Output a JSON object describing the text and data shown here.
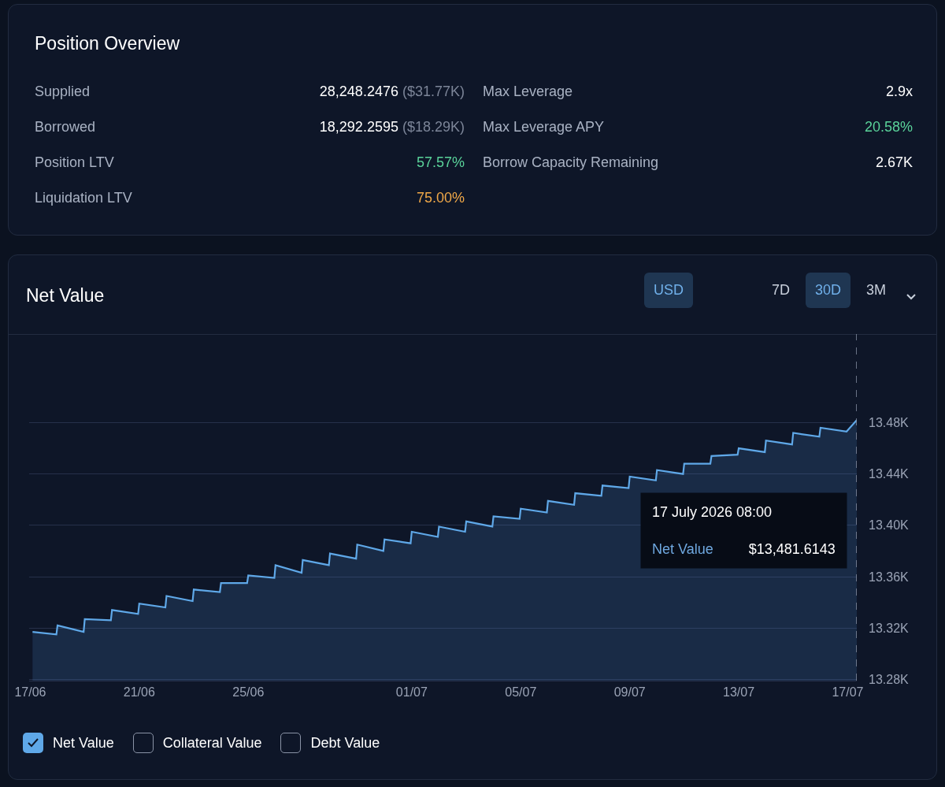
{
  "chart_data": [
    {
      "type": "other",
      "title": "Position Overview",
      "annotations": [
        "Supplied",
        "28,248.2476 ($31.77K)",
        "Borrowed",
        "18,292.2595 ($18.29K)",
        "Position LTV",
        "57.57%",
        "Liquidation LTV",
        "75.00%",
        "Max Leverage",
        "2.9x",
        "Max Leverage APY",
        "20.58%",
        "Borrow Capacity Remaining",
        "2.67K"
      ]
    },
    {
      "type": "area",
      "title": "Net Value",
      "x": [
        "2026-06-17T02:00",
        "2026-06-17T23:00",
        "2026-06-18T00:00",
        "2026-06-18T23:00",
        "2026-06-19T00:00",
        "2026-06-19T23:00",
        "2026-06-20T00:00",
        "2026-06-20T23:00",
        "2026-06-21T00:00",
        "2026-06-21T23:00",
        "2026-06-22T00:00",
        "2026-06-22T23:00",
        "2026-06-23T00:00",
        "2026-06-23T23:00",
        "2026-06-24T00:00",
        "2026-06-24T23:00",
        "2026-06-25T00:00",
        "2026-06-25T23:00",
        "2026-06-26T00:00",
        "2026-06-26T23:00",
        "2026-06-27T00:00",
        "2026-06-27T23:00",
        "2026-06-28T00:00",
        "2026-06-28T23:00",
        "2026-06-29T00:00",
        "2026-06-29T23:00",
        "2026-06-30T00:00",
        "2026-06-30T23:00",
        "2026-07-01T00:00",
        "2026-07-01T23:00",
        "2026-07-02T00:00",
        "2026-07-02T23:00",
        "2026-07-03T00:00",
        "2026-07-03T23:00",
        "2026-07-04T00:00",
        "2026-07-04T23:00",
        "2026-07-05T00:00",
        "2026-07-05T23:00",
        "2026-07-06T00:00",
        "2026-07-06T23:00",
        "2026-07-07T00:00",
        "2026-07-07T23:00",
        "2026-07-08T00:00",
        "2026-07-08T23:00",
        "2026-07-09T00:00",
        "2026-07-09T23:00",
        "2026-07-10T00:00",
        "2026-07-10T23:00",
        "2026-07-11T00:00",
        "2026-07-11T23:00",
        "2026-07-12T00:00",
        "2026-07-12T23:00",
        "2026-07-13T00:00",
        "2026-07-13T23:00",
        "2026-07-14T00:00",
        "2026-07-14T23:00",
        "2026-07-15T00:00",
        "2026-07-15T23:00",
        "2026-07-16T00:00",
        "2026-07-16T23:00",
        "2026-07-17T08:00"
      ],
      "series": [
        {
          "name": "Net Value",
          "color": "#5fa8e8",
          "values": [
            13317,
            13315,
            13322,
            13317,
            13327,
            13326,
            13334,
            13331,
            13339,
            13336,
            13345,
            13341,
            13350,
            13348,
            13355,
            13355,
            13361,
            13359,
            13369,
            13363,
            13373,
            13369,
            13378,
            13374,
            13385,
            13380,
            13389,
            13386,
            13395,
            13391,
            13399,
            13395,
            13403,
            13399,
            13407,
            13405,
            13413,
            13410,
            13419,
            13416,
            13425,
            13423,
            13431,
            13429,
            13438,
            13435,
            13443,
            13440,
            13448,
            13448,
            13454,
            13455,
            13460,
            13457,
            13466,
            13463,
            13472,
            13469,
            13476,
            13473,
            13482
          ]
        }
      ],
      "xlim": [
        "2026-06-16T23:00",
        "2026-07-17T08:00"
      ],
      "xticks": [
        {
          "value": "2026-06-17",
          "label": "17/06"
        },
        {
          "value": "2026-06-21",
          "label": "21/06"
        },
        {
          "value": "2026-06-25",
          "label": "25/06"
        },
        {
          "value": "2026-07-01",
          "label": "01/07"
        },
        {
          "value": "2026-07-05",
          "label": "05/07"
        },
        {
          "value": "2026-07-09",
          "label": "09/07"
        },
        {
          "value": "2026-07-13",
          "label": "13/07"
        },
        {
          "value": "2026-07-17",
          "label": "17/07"
        }
      ],
      "ylim": [
        13279,
        13549
      ],
      "yticks": [
        {
          "value": 13280,
          "label": "13.28K"
        },
        {
          "value": 13320,
          "label": "13.32K"
        },
        {
          "value": 13360,
          "label": "13.36K"
        },
        {
          "value": 13400,
          "label": "13.40K"
        },
        {
          "value": 13440,
          "label": "13.44K"
        },
        {
          "value": 13480,
          "label": "13.48K"
        }
      ],
      "grid": "y",
      "legend": "bottom left",
      "marker": "none",
      "line_style": "solid",
      "ref_lines": [
        {
          "axis": "x",
          "value": "2026-07-17T08:00",
          "color": "#8a93a6",
          "line_style": "dashed"
        }
      ],
      "annotations": [
        "USD",
        "7D",
        "30D",
        "3M",
        "Collateral Value",
        "Debt Value",
        "17 July 2026 08:00",
        "$13,481.6143"
      ]
    }
  ]
}
